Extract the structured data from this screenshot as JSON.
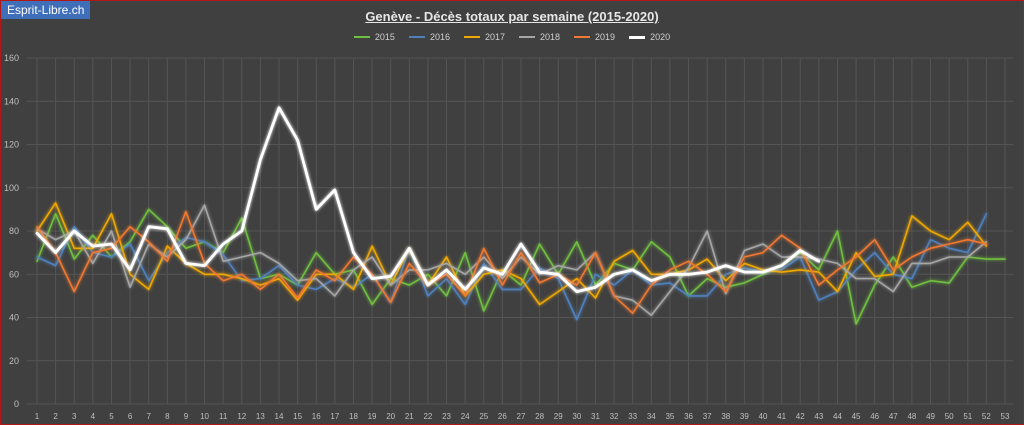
{
  "site": {
    "logo": "Esprit-Libre.ch"
  },
  "colors": {
    "background": "#404040",
    "grid": "#555555",
    "axis_text": "#bfbfbf"
  },
  "chart_data": {
    "type": "line",
    "title": "Genève - Décès totaux par semaine (2015-2020)",
    "xlabel": "",
    "ylabel": "",
    "ylim": [
      0,
      160
    ],
    "yticks": [
      0,
      20,
      40,
      60,
      80,
      100,
      120,
      140,
      160
    ],
    "x": [
      1,
      2,
      3,
      4,
      5,
      6,
      7,
      8,
      9,
      10,
      11,
      12,
      13,
      14,
      15,
      16,
      17,
      18,
      19,
      20,
      21,
      22,
      23,
      24,
      25,
      26,
      27,
      28,
      29,
      30,
      31,
      32,
      33,
      34,
      35,
      36,
      37,
      38,
      39,
      40,
      41,
      42,
      43,
      44,
      45,
      46,
      47,
      48,
      49,
      50,
      51,
      52,
      53
    ],
    "grid": true,
    "legend": "top-center",
    "series": [
      {
        "name": "2015",
        "color": "#6fbf3f",
        "values": [
          66,
          88,
          67,
          78,
          68,
          75,
          90,
          82,
          72,
          75,
          70,
          86,
          58,
          60,
          55,
          70,
          60,
          62,
          46,
          58,
          55,
          60,
          50,
          70,
          43,
          62,
          55,
          74,
          60,
          75,
          55,
          65,
          62,
          75,
          68,
          50,
          58,
          54,
          56,
          60,
          64,
          70,
          62,
          80,
          37,
          55,
          68,
          54,
          57,
          56,
          68,
          67,
          67
        ]
      },
      {
        "name": "2016",
        "color": "#4f81bd",
        "values": [
          68,
          64,
          82,
          70,
          68,
          74,
          57,
          70,
          77,
          75,
          69,
          57,
          58,
          64,
          55,
          53,
          58,
          54,
          60,
          47,
          72,
          50,
          58,
          46,
          65,
          53,
          53,
          63,
          58,
          39,
          60,
          55,
          62,
          55,
          56,
          50,
          50,
          60,
          63,
          61,
          62,
          68,
          48,
          52,
          62,
          70,
          60,
          58,
          76,
          72,
          70,
          88,
          null
        ]
      },
      {
        "name": "2017",
        "color": "#f0a800",
        "values": [
          80,
          93,
          72,
          72,
          88,
          60,
          53,
          73,
          65,
          60,
          60,
          58,
          55,
          58,
          48,
          60,
          60,
          53,
          73,
          55,
          72,
          55,
          68,
          50,
          60,
          62,
          58,
          46,
          52,
          58,
          49,
          66,
          71,
          60,
          60,
          62,
          67,
          57,
          65,
          62,
          61,
          62,
          61,
          52,
          70,
          59,
          60,
          87,
          80,
          76,
          84,
          73,
          null
        ]
      },
      {
        "name": "2018",
        "color": "#a6a6a6",
        "values": [
          81,
          76,
          80,
          65,
          80,
          54,
          74,
          68,
          76,
          92,
          66,
          68,
          70,
          65,
          57,
          58,
          50,
          62,
          68,
          55,
          62,
          62,
          65,
          60,
          68,
          58,
          68,
          60,
          64,
          62,
          70,
          50,
          48,
          41,
          52,
          63,
          80,
          51,
          71,
          74,
          68,
          68,
          67,
          65,
          58,
          58,
          52,
          65,
          65,
          68,
          68,
          75,
          null
        ]
      },
      {
        "name": "2019",
        "color": "#f07830",
        "values": [
          82,
          70,
          52,
          70,
          72,
          82,
          75,
          66,
          89,
          65,
          57,
          60,
          53,
          60,
          49,
          62,
          57,
          68,
          60,
          47,
          65,
          55,
          60,
          50,
          72,
          55,
          70,
          56,
          60,
          55,
          70,
          50,
          42,
          55,
          62,
          66,
          60,
          52,
          68,
          70,
          78,
          72,
          55,
          62,
          68,
          76,
          62,
          68,
          72,
          74,
          76,
          74,
          null
        ]
      },
      {
        "name": "2020",
        "color": "#ffffff",
        "values": [
          79,
          70,
          80,
          73,
          74,
          62,
          82,
          81,
          65,
          64,
          74,
          80,
          113,
          137,
          122,
          90,
          99,
          70,
          58,
          59,
          72,
          55,
          62,
          53,
          63,
          60,
          74,
          61,
          60,
          52,
          54,
          60,
          62,
          57,
          60,
          60,
          61,
          64,
          61,
          61,
          64,
          71,
          66,
          null,
          null,
          null,
          null,
          null,
          null,
          null,
          null,
          null,
          null
        ]
      }
    ]
  }
}
